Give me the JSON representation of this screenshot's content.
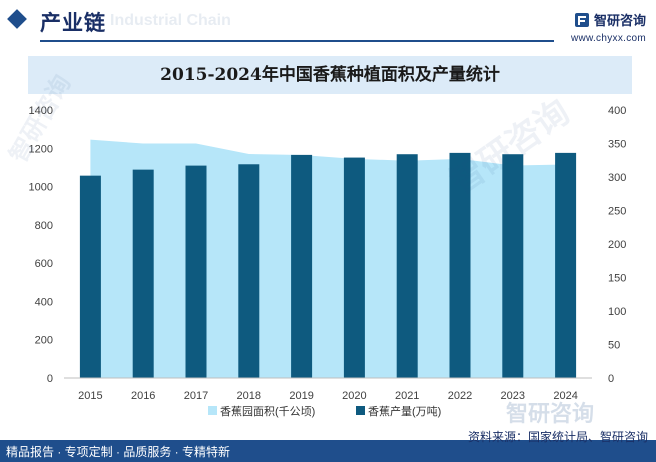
{
  "header": {
    "section_title": "产业链",
    "watermark_text": "Industrial Chain",
    "brand_name": "智研咨询",
    "brand_url": "www.chyxx.com"
  },
  "colors": {
    "brand_navy": "#1f4e8c",
    "area_fill": "#b6e6f9",
    "bar_fill": "#0e5a7f",
    "title_band": "#dcebf8"
  },
  "chart_data": {
    "type": "bar",
    "title": "2015-2024年中国香蕉种植面积及产量统计",
    "categories": [
      "2015",
      "2016",
      "2017",
      "2018",
      "2019",
      "2020",
      "2021",
      "2022",
      "2023",
      "2024"
    ],
    "series": [
      {
        "name": "香蕉园面积(千公顷)",
        "type": "area",
        "axis": "left",
        "values": [
          1245,
          1225,
          1225,
          1170,
          1165,
          1145,
          1135,
          1145,
          1110,
          1115
        ]
      },
      {
        "name": "香蕉产量(万吨)",
        "type": "bar",
        "axis": "right",
        "values": [
          302,
          311,
          317,
          319,
          333,
          329,
          334,
          336,
          334,
          336
        ]
      }
    ],
    "ylim_left": [
      0,
      1400
    ],
    "ylim_right": [
      0,
      400
    ],
    "left_ticks": [
      "0",
      "200",
      "400",
      "600",
      "800",
      "1000",
      "1200",
      "1400"
    ],
    "right_ticks": [
      "0",
      "50",
      "100",
      "150",
      "200",
      "250",
      "300",
      "350",
      "400"
    ],
    "grid": false,
    "legend_position": "bottom"
  },
  "footer": {
    "left_text": "精品报告 · 专项定制 · 品质服务 · 专精特新",
    "source_text": "资料来源：国家统计局、智研咨询",
    "brand_logo_text": "智研咨询"
  }
}
